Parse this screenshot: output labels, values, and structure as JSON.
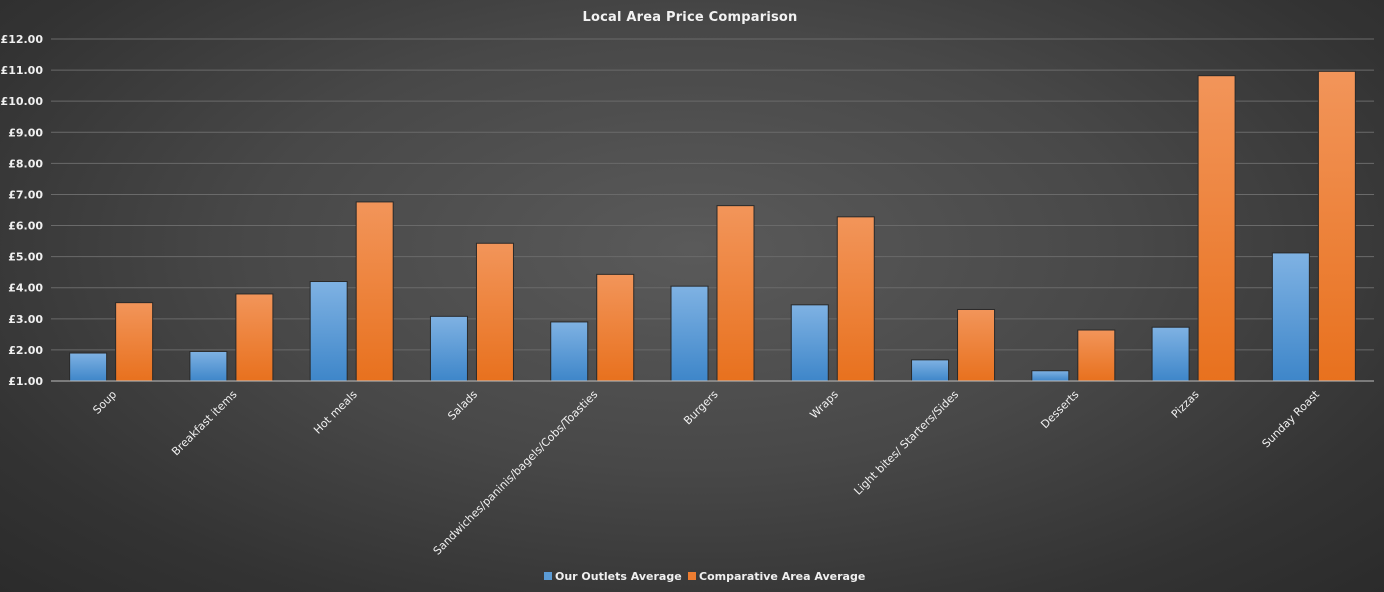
{
  "chart_data": {
    "type": "bar",
    "title": "Local Area Price Comparison",
    "xlabel": "",
    "ylabel": "",
    "ylim": [
      1,
      12
    ],
    "yticks": [
      "£1.00",
      "£2.00",
      "£3.00",
      "£4.00",
      "£5.00",
      "£6.00",
      "£7.00",
      "£8.00",
      "£9.00",
      "£10.00",
      "£11.00",
      "£12.00"
    ],
    "categories": [
      "Soup",
      "Breakfast items",
      "Hot meals",
      "Salads",
      "Sandwiches/paninis/bagels/Cobs/Toasties",
      "Burgers",
      "Wraps",
      "Light bites/ Starters/Sides",
      "Desserts",
      "Pizzas",
      "Sunday Roast"
    ],
    "series": [
      {
        "name": "Our Outlets Average",
        "color": "#5b9bd5",
        "values": [
          1.9,
          1.95,
          4.2,
          3.08,
          2.9,
          4.05,
          3.45,
          1.68,
          1.33,
          2.73,
          5.12
        ]
      },
      {
        "name": "Comparative Area Average",
        "color": "#ed7d31",
        "values": [
          3.52,
          3.8,
          6.76,
          5.43,
          4.43,
          6.64,
          6.28,
          3.3,
          2.64,
          10.82,
          10.96
        ]
      }
    ],
    "grid": true,
    "legend_position": "bottom"
  }
}
